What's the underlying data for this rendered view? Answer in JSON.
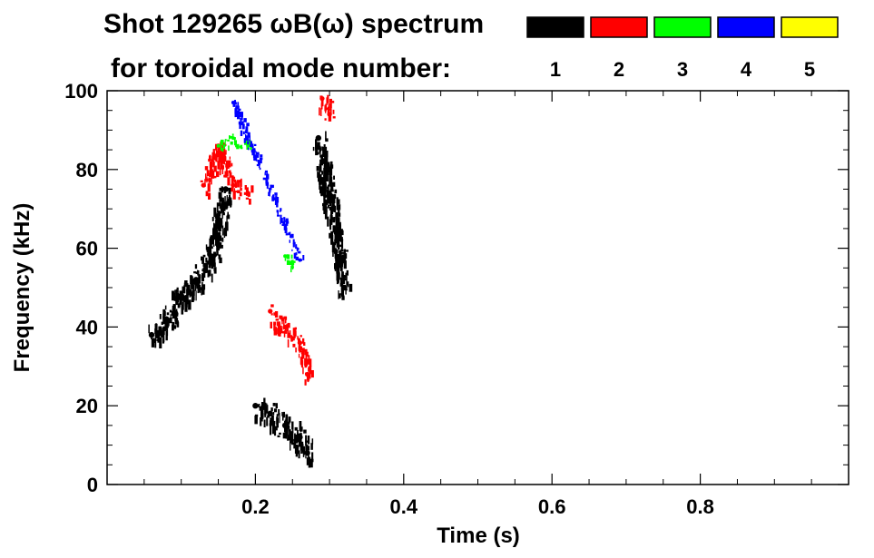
{
  "chart_data": {
    "type": "heatmap",
    "title_line1": "Shot 129265 ωB(ω) spectrum",
    "title_line2": "for toroidal mode number:",
    "xlabel": "Time (s)",
    "ylabel": "Frequency (kHz)",
    "xlim": [
      0.0,
      1.0
    ],
    "ylim": [
      0,
      100
    ],
    "x_ticks": [
      0.2,
      0.4,
      0.6,
      0.8
    ],
    "x_tick_labels": [
      "0.2",
      "0.4",
      "0.6",
      "0.8"
    ],
    "y_ticks": [
      0,
      20,
      40,
      60,
      80,
      100
    ],
    "y_tick_labels": [
      "0",
      "20",
      "40",
      "60",
      "80",
      "100"
    ],
    "legend": [
      {
        "label": "1",
        "color": "#000000"
      },
      {
        "label": "2",
        "color": "#ff0000"
      },
      {
        "label": "3",
        "color": "#00ff00"
      },
      {
        "label": "4",
        "color": "#0000ff"
      },
      {
        "label": "5",
        "color": "#ffff00"
      }
    ],
    "series": [
      {
        "mode": 1,
        "color": "#000000",
        "x": [
          0.06,
          0.08,
          0.1,
          0.12,
          0.14,
          0.15,
          0.16
        ],
        "y": [
          38,
          42,
          48,
          52,
          58,
          66,
          75
        ]
      },
      {
        "mode": 1,
        "color": "#000000",
        "x": [
          0.2,
          0.22,
          0.24,
          0.26,
          0.27
        ],
        "y": [
          20,
          18,
          15,
          12,
          8
        ]
      },
      {
        "mode": 1,
        "color": "#000000",
        "x": [
          0.285,
          0.3,
          0.31,
          0.32
        ],
        "y": [
          88,
          72,
          62,
          50
        ]
      },
      {
        "mode": 2,
        "color": "#ff0000",
        "x": [
          0.13,
          0.15,
          0.17,
          0.19
        ],
        "y": [
          76,
          86,
          76,
          74
        ]
      },
      {
        "mode": 2,
        "color": "#ff0000",
        "x": [
          0.22,
          0.24,
          0.26,
          0.27
        ],
        "y": [
          44,
          40,
          36,
          28
        ]
      },
      {
        "mode": 2,
        "color": "#ff0000",
        "x": [
          0.29,
          0.3
        ],
        "y": [
          98,
          94
        ]
      },
      {
        "mode": 3,
        "color": "#00ff00",
        "x": [
          0.15,
          0.17,
          0.19
        ],
        "y": [
          86,
          88,
          86
        ]
      },
      {
        "mode": 3,
        "color": "#00ff00",
        "x": [
          0.24,
          0.25
        ],
        "y": [
          58,
          56
        ]
      },
      {
        "mode": 4,
        "color": "#0000ff",
        "x": [
          0.17,
          0.26
        ],
        "y": [
          97,
          57
        ]
      }
    ]
  }
}
